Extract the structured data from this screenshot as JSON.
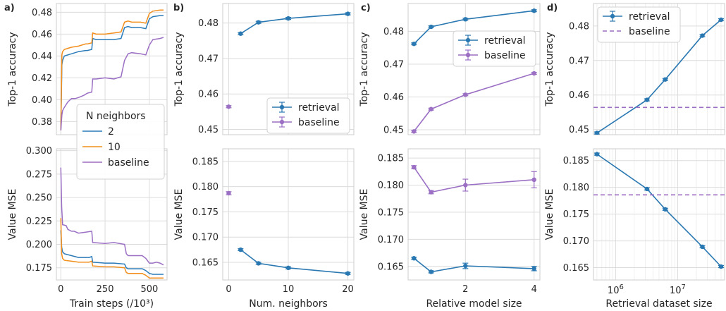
{
  "colors": {
    "retrieval": "#2a78b2",
    "n2": "#2b7bb9",
    "n10": "#f28e1c",
    "baseline": "#9b6fc4"
  },
  "chart_data": [
    {
      "panel": "a",
      "type": "line",
      "ylabel": "Top-1 accuracy",
      "ylim": [
        0.368,
        0.488
      ],
      "yticks": [
        "0.38",
        "0.40",
        "0.42",
        "0.44",
        "0.46",
        "0.48"
      ],
      "xlim": [
        -25,
        600
      ],
      "series": [
        {
          "name": "2",
          "color_key": "n2",
          "x": [
            0,
            6,
            10,
            20,
            40,
            60,
            100,
            140,
            150,
            175,
            180,
            200,
            250,
            300,
            340,
            360,
            380,
            400,
            450,
            480,
            500,
            520,
            560,
            580
          ],
          "y": [
            0.372,
            0.432,
            0.436,
            0.44,
            0.441,
            0.442,
            0.444,
            0.445,
            0.445,
            0.446,
            0.456,
            0.455,
            0.455,
            0.455,
            0.456,
            0.466,
            0.467,
            0.466,
            0.466,
            0.465,
            0.474,
            0.476,
            0.477,
            0.477
          ]
        },
        {
          "name": "10",
          "color_key": "n10",
          "x": [
            0,
            6,
            10,
            20,
            40,
            60,
            100,
            140,
            150,
            175,
            180,
            200,
            250,
            300,
            340,
            360,
            380,
            400,
            450,
            480,
            500,
            520,
            560,
            580
          ],
          "y": [
            0.372,
            0.441,
            0.444,
            0.446,
            0.447,
            0.448,
            0.449,
            0.451,
            0.451,
            0.452,
            0.461,
            0.46,
            0.46,
            0.461,
            0.462,
            0.471,
            0.472,
            0.471,
            0.471,
            0.47,
            0.479,
            0.481,
            0.482,
            0.482
          ]
        },
        {
          "name": "baseline",
          "color_key": "baseline",
          "x": [
            0,
            6,
            10,
            20,
            40,
            60,
            80,
            100,
            130,
            150,
            175,
            180,
            200,
            250,
            300,
            340,
            360,
            380,
            400,
            450,
            480,
            500,
            520,
            560,
            580
          ],
          "y": [
            0.372,
            0.386,
            0.39,
            0.393,
            0.398,
            0.401,
            0.401,
            0.402,
            0.404,
            0.406,
            0.407,
            0.419,
            0.419,
            0.42,
            0.419,
            0.421,
            0.436,
            0.442,
            0.443,
            0.442,
            0.441,
            0.45,
            0.455,
            0.456,
            0.457
          ]
        }
      ]
    },
    {
      "panel": "a-bottom",
      "type": "line",
      "xlabel": "Train steps (/10³)",
      "ylabel": "Value MSE",
      "ylim": [
        0.162,
        0.302
      ],
      "yticks": [
        "0.175",
        "0.200",
        "0.225",
        "0.250",
        "0.275",
        "0.300"
      ],
      "xlim": [
        -25,
        600
      ],
      "xticks": [
        "0",
        "250",
        "500"
      ],
      "series": [
        {
          "name": "2",
          "color_key": "n2",
          "x": [
            0,
            5,
            10,
            20,
            60,
            100,
            160,
            175,
            180,
            250,
            300,
            360,
            370,
            380,
            400,
            460,
            480,
            500,
            520,
            560,
            580
          ],
          "y": [
            0.215,
            0.197,
            0.192,
            0.19,
            0.188,
            0.186,
            0.186,
            0.187,
            0.181,
            0.18,
            0.18,
            0.179,
            0.175,
            0.174,
            0.174,
            0.174,
            0.172,
            0.169,
            0.168,
            0.168,
            0.168
          ]
        },
        {
          "name": "10",
          "color_key": "n10",
          "x": [
            0,
            5,
            10,
            20,
            60,
            100,
            160,
            175,
            180,
            250,
            300,
            360,
            370,
            380,
            400,
            460,
            480,
            500,
            520,
            560,
            580
          ],
          "y": [
            0.228,
            0.19,
            0.185,
            0.183,
            0.182,
            0.181,
            0.181,
            0.182,
            0.177,
            0.176,
            0.176,
            0.175,
            0.17,
            0.169,
            0.169,
            0.169,
            0.167,
            0.164,
            0.164,
            0.164,
            0.164
          ]
        },
        {
          "name": "baseline",
          "color_key": "baseline",
          "x": [
            0,
            5,
            10,
            30,
            40,
            60,
            75,
            100,
            140,
            175,
            180,
            250,
            300,
            360,
            370,
            380,
            400,
            460,
            480,
            500,
            520,
            540,
            560,
            580
          ],
          "y": [
            0.282,
            0.24,
            0.221,
            0.22,
            0.216,
            0.214,
            0.214,
            0.212,
            0.213,
            0.214,
            0.202,
            0.201,
            0.202,
            0.2,
            0.19,
            0.188,
            0.188,
            0.188,
            0.185,
            0.18,
            0.18,
            0.181,
            0.18,
            0.178
          ]
        }
      ]
    },
    {
      "panel": "b",
      "type": "line",
      "ylabel": "Top-1 accuracy",
      "ylim": [
        0.4485,
        0.4855
      ],
      "yticks": [
        "0.45",
        "0.46",
        "0.47",
        "0.48"
      ],
      "xlim": [
        -1,
        21
      ],
      "series": [
        {
          "name": "retrieval",
          "color_key": "retrieval",
          "x": [
            2,
            5,
            10,
            20
          ],
          "y": [
            0.477,
            0.4802,
            0.4813,
            0.4826
          ],
          "err": [
            0.0003,
            0.0003,
            0.0003,
            0.0003
          ]
        },
        {
          "name": "baseline",
          "color_key": "baseline",
          "x": [
            0
          ],
          "y": [
            0.4564
          ],
          "err": [
            0.0003
          ]
        }
      ]
    },
    {
      "panel": "b-bottom",
      "type": "line",
      "xlabel": "Num. neighbors",
      "ylabel": "Value MSE",
      "ylim": [
        0.1615,
        0.1875
      ],
      "yticks": [
        "0.165",
        "0.170",
        "0.175",
        "0.180",
        "0.185"
      ],
      "xlim": [
        -1,
        21
      ],
      "xticks": [
        "0",
        "10",
        "20"
      ],
      "series": [
        {
          "name": "retrieval",
          "color_key": "retrieval",
          "x": [
            2,
            5,
            10,
            20
          ],
          "y": [
            0.1675,
            0.1648,
            0.1639,
            0.1628
          ],
          "err": [
            0.0002,
            0.0002,
            0.0002,
            0.0002
          ]
        },
        {
          "name": "baseline",
          "color_key": "baseline",
          "x": [
            0
          ],
          "y": [
            0.1787
          ],
          "err": [
            0.0003
          ]
        }
      ]
    },
    {
      "panel": "c",
      "type": "line",
      "ylabel": "Top-1 accuracy",
      "ylim": [
        0.4485,
        0.4885
      ],
      "yticks": [
        "0.45",
        "0.46",
        "0.47",
        "0.48"
      ],
      "xlim": [
        0.33,
        4.17
      ],
      "series": [
        {
          "name": "retrieval",
          "color_key": "retrieval",
          "x": [
            0.5,
            1,
            2,
            4
          ],
          "y": [
            0.4762,
            0.4814,
            0.4837,
            0.4863
          ],
          "err": [
            0.0003,
            0.0003,
            0.0003,
            0.0003
          ]
        },
        {
          "name": "baseline",
          "color_key": "baseline",
          "x": [
            0.5,
            1,
            2,
            4
          ],
          "y": [
            0.4495,
            0.4563,
            0.4607,
            0.4672
          ],
          "err": [
            0.0003,
            0.0003,
            0.0003,
            0.0003
          ]
        }
      ]
    },
    {
      "panel": "c-bottom",
      "type": "line",
      "xlabel": "Relative model size",
      "ylabel": "Value MSE",
      "ylim": [
        0.1625,
        0.1867
      ],
      "yticks": [
        "0.165",
        "0.170",
        "0.175",
        "0.180",
        "0.185"
      ],
      "xlim": [
        0.33,
        4.17
      ],
      "xticks": [
        "2",
        "4"
      ],
      "series": [
        {
          "name": "retrieval",
          "color_key": "retrieval",
          "x": [
            0.5,
            1,
            2,
            4
          ],
          "y": [
            0.1665,
            0.164,
            0.1651,
            0.1646
          ],
          "err": [
            0.0002,
            0.0002,
            0.0005,
            0.0004
          ]
        },
        {
          "name": "baseline",
          "color_key": "baseline",
          "x": [
            0.5,
            1,
            2,
            4
          ],
          "y": [
            0.1833,
            0.1787,
            0.18,
            0.181
          ],
          "err": [
            0.0003,
            0.0003,
            0.0011,
            0.0015
          ]
        }
      ]
    },
    {
      "panel": "d",
      "type": "line",
      "ylabel": "Top-1 accuracy",
      "ylim": [
        0.4485,
        0.4865
      ],
      "yticks": [
        "0.45",
        "0.46",
        "0.47",
        "0.48"
      ],
      "xscale": "log",
      "xlim": [
        440000,
        57000000
      ],
      "series": [
        {
          "name": "retrieval",
          "color_key": "retrieval",
          "x": [
            500000,
            3200000,
            6300000,
            25000000,
            50000000
          ],
          "y": [
            0.449,
            0.4586,
            0.4645,
            0.4772,
            0.4818
          ],
          "err": [
            0.0003,
            0.0003,
            0.0003,
            0.0003,
            0.0003
          ]
        },
        {
          "name": "baseline",
          "color_key": "baseline",
          "style": "dashed",
          "y_const": 0.4564
        }
      ]
    },
    {
      "panel": "d-bottom",
      "type": "line",
      "xlabel": "Retrieval dataset size",
      "ylabel": "Value MSE",
      "ylim": [
        0.1627,
        0.1872
      ],
      "yticks": [
        "0.165",
        "0.170",
        "0.175",
        "0.180",
        "0.185"
      ],
      "xscale": "log",
      "xlim": [
        440000,
        57000000
      ],
      "xticks_log": [
        6,
        7
      ],
      "series": [
        {
          "name": "retrieval",
          "color_key": "retrieval",
          "x": [
            500000,
            3200000,
            6300000,
            25000000,
            50000000
          ],
          "y": [
            0.1862,
            0.1797,
            0.1759,
            0.1689,
            0.1652
          ],
          "err": [
            0.0002,
            0.0002,
            0.0002,
            0.0002,
            0.0002
          ]
        },
        {
          "name": "baseline",
          "color_key": "baseline",
          "style": "dashed",
          "y_const": 0.1786
        }
      ]
    }
  ],
  "panel_letters": [
    "a)",
    "b)",
    "c)",
    "d)"
  ],
  "legends": {
    "a": {
      "title": "N neighbors",
      "items": [
        "2",
        "10",
        "baseline"
      ]
    },
    "b": {
      "items": [
        "retrieval",
        "baseline"
      ]
    },
    "c": {
      "items": [
        "retrieval",
        "baseline"
      ]
    },
    "d": {
      "items": [
        "retrieval",
        "baseline"
      ]
    }
  }
}
